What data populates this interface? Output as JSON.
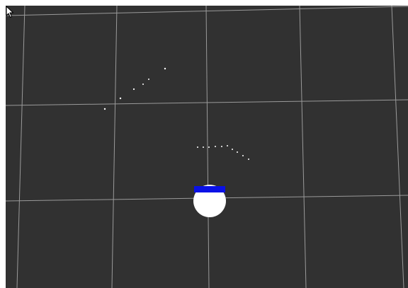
{
  "viewer": {
    "background_color": "#313131",
    "grid_line_color": "#9a9a9a"
  },
  "robot": {
    "body_color": "#ffffff",
    "heading_indicator_color": "#0a11e6"
  },
  "laser_scan": {
    "point_color": "#ffffff"
  },
  "cursor": {
    "icon": "mouse-pointer-icon"
  }
}
